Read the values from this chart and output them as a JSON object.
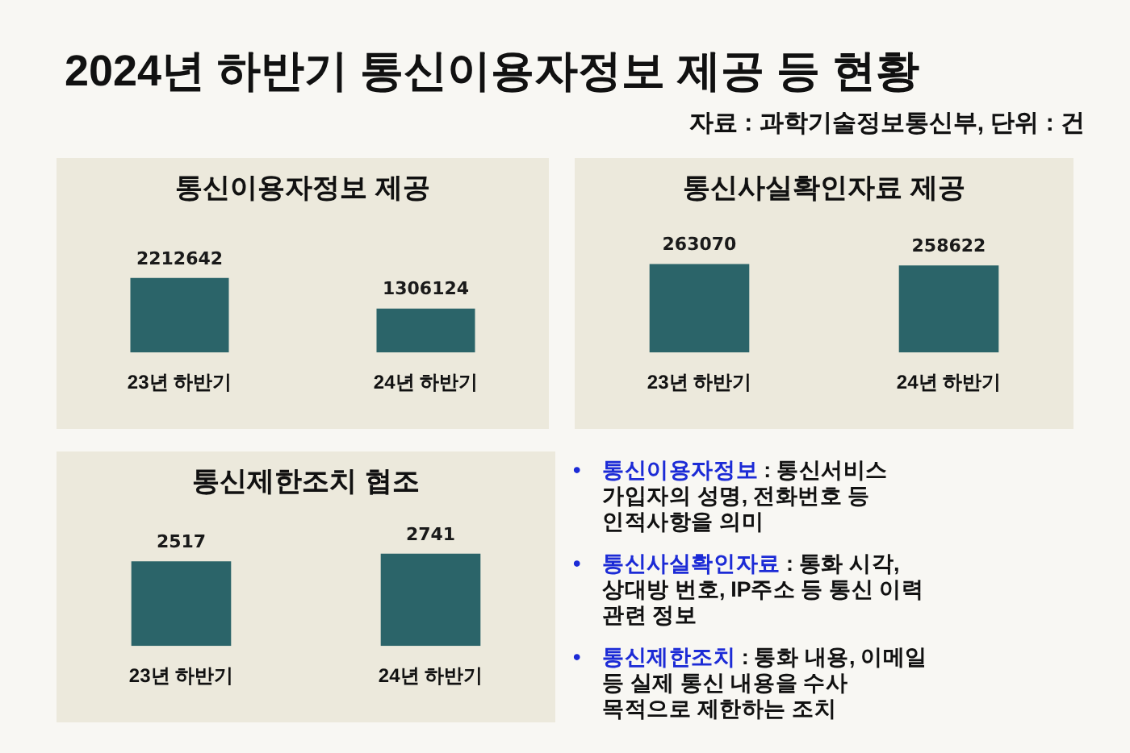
{
  "chart_data": [
    {
      "type": "other",
      "title": "2024년 하반기 통신이용자정보 제공 등 현황",
      "annotations": [
        "자료 : 과학기술정보통신부, 단위 : 건"
      ]
    },
    {
      "type": "bar",
      "title": "통신이용자정보 제공",
      "categories": [
        "23년 하반기",
        "24년 하반기"
      ],
      "values": [
        2212642,
        1306124
      ],
      "color": "#2b6469",
      "data_labels": true,
      "tick_labels": "x"
    },
    {
      "type": "bar",
      "title": "통신사실확인자료 제공",
      "categories": [
        "23년 하반기",
        "24년 하반기"
      ],
      "values": [
        263070,
        258622
      ],
      "color": "#2b6469",
      "data_labels": true,
      "tick_labels": "x"
    },
    {
      "type": "bar",
      "title": "통신제한조치 협조",
      "categories": [
        "23년 하반기",
        "24년 하반기"
      ],
      "values": [
        2517,
        2741
      ],
      "color": "#2b6469",
      "data_labels": true,
      "tick_labels": "x"
    },
    {
      "type": "other",
      "annotations": [
        "• 통신이용자정보 : 통신서비스 가입자의 성명, 전화번호 등 인적사항을 의미",
        "• 통신사실확인자료 : 통화 시각, 상대방 번호, IP주소 등 통신 이력 관련 정보",
        "• 통신제한조치 : 통화 내용, 이메일 등 실제 통신 내용을 수사 목적으로 제한하는 조치"
      ]
    }
  ]
}
